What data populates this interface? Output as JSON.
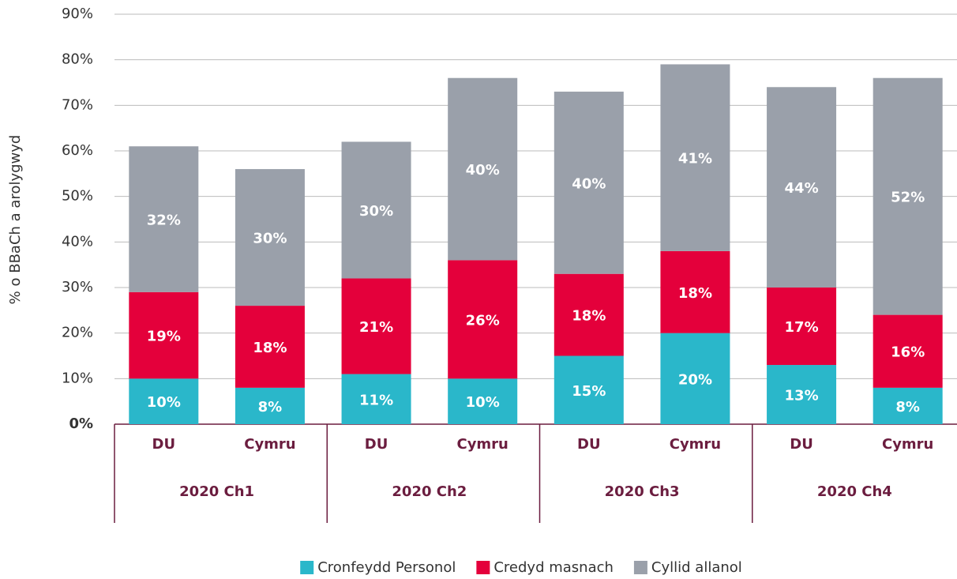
{
  "chart_data": {
    "type": "stacked_bar",
    "ylabel": "% o BBaCh a arolygwyd",
    "categories": [
      "DU",
      "Cymru",
      "DU",
      "Cymru",
      "DU",
      "Cymru",
      "DU",
      "Cymru"
    ],
    "groups": [
      "2020 Ch1",
      "2020 Ch2",
      "2020 Ch3",
      "2020 Ch4"
    ],
    "series": [
      {
        "name": "Cronfeydd Personol",
        "color": "#2ab7ca",
        "values": [
          10,
          8,
          11,
          10,
          15,
          20,
          13,
          8
        ],
        "value_labels": [
          "10%",
          "8%",
          "11%",
          "10%",
          "15%",
          "20%",
          "13%",
          "8%"
        ]
      },
      {
        "name": "Credyd masnach",
        "color": "#e4003b",
        "values": [
          19,
          18,
          21,
          26,
          18,
          18,
          17,
          16
        ],
        "value_labels": [
          "19%",
          "18%",
          "21%",
          "26%",
          "18%",
          "18%",
          "17%",
          "16%"
        ]
      },
      {
        "name": "Cyllid allanol",
        "color": "#9aa0aa",
        "values": [
          32,
          30,
          30,
          40,
          40,
          41,
          44,
          52
        ],
        "value_labels": [
          "32%",
          "30%",
          "30%",
          "40%",
          "40%",
          "41%",
          "44%",
          "52%"
        ]
      }
    ],
    "ylim": [
      0,
      90
    ],
    "yticks": [
      {
        "value": 0,
        "label": "0%"
      },
      {
        "value": 10,
        "label": "10%"
      },
      {
        "value": 20,
        "label": "20%"
      },
      {
        "value": 30,
        "label": "30%"
      },
      {
        "value": 40,
        "label": "40%"
      },
      {
        "value": 50,
        "label": "50%"
      },
      {
        "value": 60,
        "label": "60%"
      },
      {
        "value": 70,
        "label": "70%"
      },
      {
        "value": 80,
        "label": "80%"
      },
      {
        "value": 90,
        "label": "90%"
      }
    ],
    "grid": true
  }
}
